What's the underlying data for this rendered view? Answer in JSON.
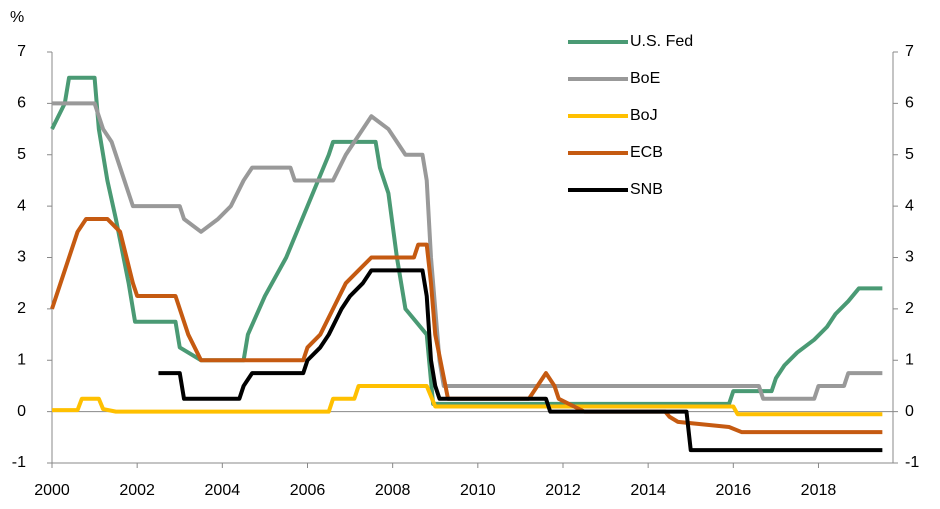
{
  "chart_data": {
    "type": "line",
    "ylabel": "%",
    "xlim": [
      2000,
      2019.75
    ],
    "xticks": [
      2000,
      2002,
      2004,
      2006,
      2008,
      2010,
      2012,
      2014,
      2016,
      2018
    ],
    "ylim": [
      -1,
      7
    ],
    "yticks": [
      -1,
      0,
      1,
      2,
      3,
      4,
      5,
      6,
      7
    ],
    "y2lim": [
      -1,
      7
    ],
    "y2ticks": [
      -1,
      0,
      1,
      2,
      3,
      4,
      5,
      6,
      7
    ],
    "legend": "top-right",
    "grid": false,
    "series": [
      {
        "name": "U.S. Fed",
        "color": "#4a9a74",
        "x": [
          2000,
          2000.3,
          2000.4,
          2001.0,
          2001.1,
          2001.3,
          2001.5,
          2001.8,
          2001.95,
          2002.9,
          2003.0,
          2003.5,
          2004.5,
          2004.6,
          2005.0,
          2005.5,
          2006.0,
          2006.5,
          2006.6,
          2007.6,
          2007.7,
          2007.9,
          2008.1,
          2008.3,
          2008.8,
          2008.95,
          2015.9,
          2016.0,
          2016.9,
          2017.0,
          2017.2,
          2017.5,
          2017.9,
          2018.2,
          2018.4,
          2018.7,
          2018.95,
          2019.5
        ],
        "values": [
          5.5,
          6.0,
          6.5,
          6.5,
          5.5,
          4.5,
          3.75,
          2.5,
          1.75,
          1.75,
          1.25,
          1.0,
          1.0,
          1.5,
          2.25,
          3.0,
          4.0,
          5.0,
          5.25,
          5.25,
          4.75,
          4.25,
          3.0,
          2.0,
          1.5,
          0.15,
          0.15,
          0.4,
          0.4,
          0.65,
          0.9,
          1.15,
          1.4,
          1.65,
          1.9,
          2.15,
          2.4,
          2.4
        ]
      },
      {
        "name": "BoE",
        "color": "#999999",
        "x": [
          2000,
          2001.0,
          2001.2,
          2001.4,
          2001.7,
          2001.9,
          2003.0,
          2003.1,
          2003.5,
          2003.9,
          2004.2,
          2004.5,
          2004.7,
          2005.6,
          2005.7,
          2006.6,
          2006.9,
          2007.1,
          2007.5,
          2007.9,
          2008.1,
          2008.3,
          2008.7,
          2008.8,
          2008.9,
          2009.0,
          2009.1,
          2009.2,
          2016.6,
          2016.7,
          2017.9,
          2018.0,
          2018.6,
          2018.7,
          2019.5
        ],
        "values": [
          6.0,
          6.0,
          5.5,
          5.25,
          4.5,
          4.0,
          4.0,
          3.75,
          3.5,
          3.75,
          4.0,
          4.5,
          4.75,
          4.75,
          4.5,
          4.5,
          5.0,
          5.25,
          5.75,
          5.5,
          5.25,
          5.0,
          5.0,
          4.5,
          3.0,
          2.0,
          1.0,
          0.5,
          0.5,
          0.25,
          0.25,
          0.5,
          0.5,
          0.75,
          0.75
        ]
      },
      {
        "name": "BoJ",
        "color": "#ffc000",
        "x": [
          2000,
          2000.6,
          2000.7,
          2001.1,
          2001.2,
          2001.5,
          2006.5,
          2006.6,
          2007.1,
          2007.2,
          2008.8,
          2008.9,
          2009.0,
          2016.0,
          2016.1,
          2019.5
        ],
        "values": [
          0.03,
          0.03,
          0.25,
          0.25,
          0.05,
          0.0,
          0.0,
          0.25,
          0.25,
          0.5,
          0.5,
          0.3,
          0.1,
          0.1,
          -0.05,
          -0.05
        ]
      },
      {
        "name": "ECB",
        "color": "#c55a11",
        "x": [
          2000,
          2000.2,
          2000.4,
          2000.6,
          2000.8,
          2001.3,
          2001.6,
          2001.75,
          2001.9,
          2002.0,
          2002.9,
          2003.0,
          2003.2,
          2003.5,
          2005.9,
          2006.0,
          2006.3,
          2006.6,
          2006.9,
          2007.2,
          2007.5,
          2008.5,
          2008.6,
          2008.8,
          2008.9,
          2009.0,
          2009.3,
          2011.2,
          2011.4,
          2011.6,
          2011.8,
          2011.9,
          2012.5,
          2014.4,
          2014.5,
          2014.7,
          2015.9,
          2016.2,
          2019.5
        ],
        "values": [
          2.0,
          2.5,
          3.0,
          3.5,
          3.75,
          3.75,
          3.5,
          3.0,
          2.5,
          2.25,
          2.25,
          2.0,
          1.5,
          1.0,
          1.0,
          1.25,
          1.5,
          2.0,
          2.5,
          2.75,
          3.0,
          3.0,
          3.25,
          3.25,
          2.5,
          1.5,
          0.25,
          0.25,
          0.5,
          0.75,
          0.5,
          0.25,
          0.0,
          0.0,
          -0.1,
          -0.2,
          -0.3,
          -0.4,
          -0.4
        ]
      },
      {
        "name": "SNB",
        "color": "#000000",
        "x": [
          2002.5,
          2003.0,
          2003.1,
          2004.4,
          2004.5,
          2004.7,
          2005.9,
          2006.0,
          2006.3,
          2006.5,
          2006.8,
          2007.0,
          2007.3,
          2007.5,
          2008.7,
          2008.8,
          2008.9,
          2009.0,
          2009.1,
          2011.6,
          2011.7,
          2014.9,
          2015.0,
          2019.5
        ],
        "values": [
          0.75,
          0.75,
          0.25,
          0.25,
          0.5,
          0.75,
          0.75,
          1.0,
          1.25,
          1.5,
          2.0,
          2.25,
          2.5,
          2.75,
          2.75,
          2.25,
          1.0,
          0.5,
          0.25,
          0.25,
          0.0,
          0.0,
          -0.75,
          -0.75
        ]
      }
    ]
  }
}
